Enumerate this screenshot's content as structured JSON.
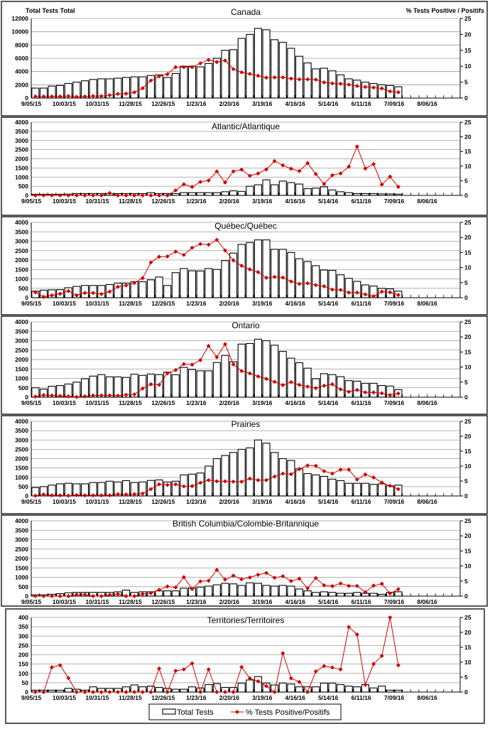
{
  "x_axis": {
    "tick_labels": [
      "9/05/15",
      "10/03/15",
      "10/31/15",
      "11/28/15",
      "12/26/15",
      "1/23/16",
      "2/20/16",
      "3/19/16",
      "4/16/16",
      "5/14/16",
      "6/11/16",
      "7/09/16",
      "8/06/16"
    ],
    "weeks_total": 52
  },
  "axis_titles": {
    "left": "Total Tests Total",
    "right": "% Tests Positive / Positifs"
  },
  "legend": {
    "bars": "Total Tests",
    "line": "% Tests Positive/Positifs"
  },
  "colors": {
    "bars_fill": "#ffffff",
    "bars_stroke": "#000000",
    "line": "#d40000",
    "grid": "#9a9a9a"
  },
  "chart_data": [
    {
      "type": "bar+line",
      "title": "Canada",
      "ylim": [
        0,
        12000
      ],
      "yticks_left": [
        0,
        2000,
        4000,
        6000,
        8000,
        10000,
        12000
      ],
      "y2lim": [
        0,
        25
      ],
      "yticks_right": [
        0,
        5,
        10,
        15,
        20,
        25
      ],
      "tests": [
        1500,
        1500,
        1800,
        1900,
        2200,
        2400,
        2600,
        2800,
        2900,
        2900,
        3000,
        3100,
        3200,
        3200,
        3400,
        3500,
        3100,
        3700,
        4800,
        4800,
        4700,
        5200,
        6000,
        7200,
        7300,
        9000,
        9600,
        10500,
        10300,
        8800,
        8400,
        7500,
        6300,
        5300,
        4400,
        4500,
        4100,
        3500,
        2900,
        2700,
        2400,
        2200,
        2000,
        1900,
        1700
      ],
      "pct_positive": [
        0.5,
        0.5,
        0.5,
        0.5,
        0.6,
        0.4,
        0.5,
        0.6,
        0.6,
        0.9,
        1.3,
        1.4,
        1.8,
        3.1,
        5.5,
        6.8,
        7.5,
        9.7,
        9.7,
        9.7,
        10.9,
        12,
        11.3,
        11.8,
        9.1,
        8.1,
        7.6,
        7,
        6.4,
        6.5,
        6.5,
        6.1,
        5.9,
        5.9,
        5.8,
        4.9,
        4.6,
        4.5,
        4.2,
        3.8,
        3.5,
        3.3,
        3,
        2.1,
        1.8
      ]
    },
    {
      "type": "bar+line",
      "title": "Atlantic/Atlantique",
      "ylim": [
        0,
        4000
      ],
      "yticks_left": [
        0,
        500,
        1000,
        1500,
        2000,
        2500,
        3000,
        3500,
        4000
      ],
      "y2lim": [
        0,
        25
      ],
      "yticks_right": [
        0,
        5,
        10,
        15,
        20,
        25
      ],
      "tests": [
        60,
        60,
        60,
        60,
        70,
        100,
        100,
        100,
        100,
        100,
        100,
        100,
        100,
        100,
        150,
        100,
        100,
        100,
        150,
        150,
        150,
        150,
        150,
        200,
        250,
        220,
        500,
        580,
        850,
        580,
        780,
        700,
        620,
        370,
        400,
        470,
        300,
        200,
        150,
        100,
        100,
        100,
        80,
        80,
        70
      ],
      "pct_positive": [
        0,
        0,
        0,
        0,
        0,
        0,
        0,
        0,
        0,
        0.8,
        0,
        0,
        0,
        0,
        0,
        0,
        0,
        1.7,
        3.8,
        2.9,
        4.6,
        5.1,
        8.2,
        4.4,
        8.2,
        8.8,
        6.7,
        7.5,
        8.9,
        11.7,
        10.3,
        9.1,
        8.3,
        11,
        7.3,
        3.9,
        6.9,
        7.5,
        9.8,
        16.7,
        9.2,
        10.7,
        3.7,
        6.4,
        2.9
      ]
    },
    {
      "type": "bar+line",
      "title": "Québec/Québec",
      "ylim": [
        0,
        4000
      ],
      "yticks_left": [
        0,
        500,
        1000,
        1500,
        2000,
        2500,
        3000,
        3500,
        4000
      ],
      "y2lim": [
        0,
        25
      ],
      "yticks_right": [
        0,
        5,
        10,
        15,
        20,
        25
      ],
      "tests": [
        350,
        400,
        420,
        430,
        530,
        600,
        650,
        650,
        650,
        700,
        780,
        780,
        850,
        850,
        950,
        1100,
        650,
        1330,
        1550,
        1430,
        1420,
        1550,
        1500,
        1970,
        2370,
        2830,
        2930,
        3070,
        3070,
        2570,
        2570,
        2400,
        2070,
        1920,
        1700,
        1470,
        1450,
        1220,
        1030,
        870,
        680,
        620,
        500,
        470,
        350
      ],
      "pct_positive": [
        1.8,
        0.3,
        0.8,
        1.3,
        2.2,
        0.8,
        1.6,
        1.6,
        1.2,
        2,
        3.6,
        4.1,
        4.9,
        6.5,
        11.7,
        13.6,
        13.7,
        15.3,
        14.2,
        16.6,
        17.8,
        17.6,
        19.2,
        15.7,
        12.4,
        10.6,
        9.4,
        8.5,
        6.6,
        6.9,
        6.7,
        5.4,
        4.6,
        4.8,
        4.2,
        3.8,
        2.7,
        2.6,
        1.7,
        1.7,
        1.1,
        0.5,
        2,
        1.8,
        0.9
      ]
    },
    {
      "type": "bar+line",
      "title": "Ontario",
      "ylim": [
        0,
        4000
      ],
      "yticks_left": [
        0,
        500,
        1000,
        1500,
        2000,
        2500,
        3000,
        3500,
        4000
      ],
      "y2lim": [
        0,
        25
      ],
      "yticks_right": [
        0,
        5,
        10,
        15,
        20,
        25
      ],
      "tests": [
        500,
        430,
        580,
        620,
        700,
        800,
        980,
        1120,
        1200,
        1080,
        1080,
        1050,
        1220,
        1160,
        1230,
        1200,
        1330,
        1190,
        1580,
        1470,
        1400,
        1400,
        1840,
        2220,
        1880,
        2820,
        2850,
        3080,
        3000,
        2760,
        2430,
        2070,
        1830,
        1540,
        980,
        1250,
        1200,
        1090,
        880,
        850,
        740,
        740,
        620,
        590,
        400
      ],
      "pct_positive": [
        0.2,
        0.7,
        0.6,
        0.4,
        0.3,
        0.1,
        0.3,
        0.6,
        0.6,
        0.6,
        0.5,
        0.8,
        0.9,
        2.9,
        4.3,
        4.1,
        7.9,
        9,
        11,
        10.8,
        12.3,
        17,
        13.3,
        17.6,
        10.9,
        8.7,
        7.9,
        6.9,
        6.1,
        5.1,
        4,
        5,
        4.1,
        3.5,
        3,
        3.8,
        4.3,
        2.6,
        1.8,
        2.4,
        1.6,
        1.6,
        1.3,
        0.7,
        1.2
      ]
    },
    {
      "type": "bar+line",
      "title": "Prairies",
      "ylim": [
        0,
        4000
      ],
      "yticks_left": [
        0,
        500,
        1000,
        1500,
        2000,
        2500,
        3000,
        3500,
        4000
      ],
      "y2lim": [
        0,
        25
      ],
      "yticks_right": [
        0,
        5,
        10,
        15,
        20,
        25
      ],
      "tests": [
        450,
        500,
        580,
        650,
        680,
        650,
        650,
        720,
        720,
        790,
        750,
        820,
        720,
        750,
        830,
        860,
        750,
        790,
        1130,
        1170,
        1230,
        1600,
        2000,
        2170,
        2330,
        2500,
        2580,
        3000,
        2830,
        2330,
        2000,
        1900,
        1450,
        1200,
        1130,
        1050,
        900,
        820,
        680,
        680,
        680,
        620,
        650,
        540,
        580
      ],
      "pct_positive": [
        0.1,
        0.5,
        0.2,
        0.2,
        0.1,
        0.3,
        0.2,
        0.2,
        0.2,
        0.2,
        0.6,
        0.5,
        0.6,
        0.8,
        2.3,
        3.9,
        3.7,
        3.9,
        3.2,
        3.3,
        4.4,
        5.3,
        4.9,
        4.9,
        4.8,
        4.8,
        5.8,
        5.3,
        5.3,
        6.5,
        7.5,
        7.3,
        9,
        10.2,
        10.1,
        8.3,
        7.5,
        8.8,
        8.8,
        5.5,
        7.2,
        6.2,
        4.5,
        3.4,
        2.3
      ]
    },
    {
      "type": "bar+line",
      "title": "British Columbia/Colombie-Britannique",
      "ylim": [
        0,
        4000
      ],
      "yticks_left": [
        0,
        500,
        1000,
        1500,
        2000,
        2500,
        3000,
        3500,
        4000
      ],
      "y2lim": [
        0,
        25
      ],
      "yticks_right": [
        0,
        5,
        10,
        15,
        20,
        25
      ],
      "tests": [
        70,
        70,
        100,
        130,
        180,
        200,
        200,
        200,
        200,
        200,
        230,
        320,
        200,
        230,
        230,
        280,
        280,
        280,
        420,
        430,
        480,
        530,
        600,
        680,
        650,
        570,
        710,
        680,
        570,
        530,
        570,
        530,
        380,
        280,
        200,
        230,
        200,
        150,
        150,
        200,
        150,
        150,
        100,
        200,
        230
      ],
      "pct_positive": [
        0,
        0,
        0,
        0,
        0,
        0.5,
        0.5,
        0,
        0,
        0.4,
        0.7,
        0,
        0,
        0.7,
        1,
        2.1,
        3.2,
        2.9,
        6.3,
        2.4,
        4.9,
        5.1,
        8.7,
        5.5,
        6.8,
        5.6,
        6.2,
        7.1,
        7.7,
        6.1,
        6.6,
        5,
        5.8,
        2.6,
        6,
        3.6,
        3.3,
        4.2,
        3.4,
        3.4,
        1.3,
        3.5,
        4.1,
        0.9,
        2.3
      ]
    },
    {
      "type": "bar+line",
      "title": "Territories/Territoires",
      "ylim": [
        0,
        400
      ],
      "yticks_left": [
        0,
        50,
        100,
        150,
        200,
        250,
        300,
        350,
        400
      ],
      "y2lim": [
        0,
        25
      ],
      "yticks_right": [
        0,
        5,
        10,
        15,
        20,
        25
      ],
      "tests": [
        10,
        10,
        10,
        10,
        20,
        15,
        10,
        28,
        20,
        20,
        20,
        28,
        38,
        28,
        32,
        25,
        20,
        15,
        15,
        28,
        22,
        40,
        45,
        25,
        25,
        48,
        65,
        83,
        48,
        38,
        48,
        43,
        28,
        28,
        28,
        48,
        48,
        40,
        32,
        28,
        40,
        22,
        32,
        10,
        10
      ],
      "pct_positive": [
        0,
        0,
        8.3,
        9,
        4.7,
        0,
        0,
        0,
        0,
        0,
        0,
        0,
        0,
        0,
        0,
        7.9,
        0,
        7.1,
        7.6,
        9.6,
        0,
        7.6,
        0,
        0,
        0,
        8.4,
        4.6,
        3.6,
        2,
        0,
        13,
        4.6,
        3.4,
        0,
        6.9,
        8.7,
        8.2,
        7.6,
        21.8,
        19.3,
        2.4,
        9.4,
        12.1,
        25,
        9
      ]
    }
  ]
}
